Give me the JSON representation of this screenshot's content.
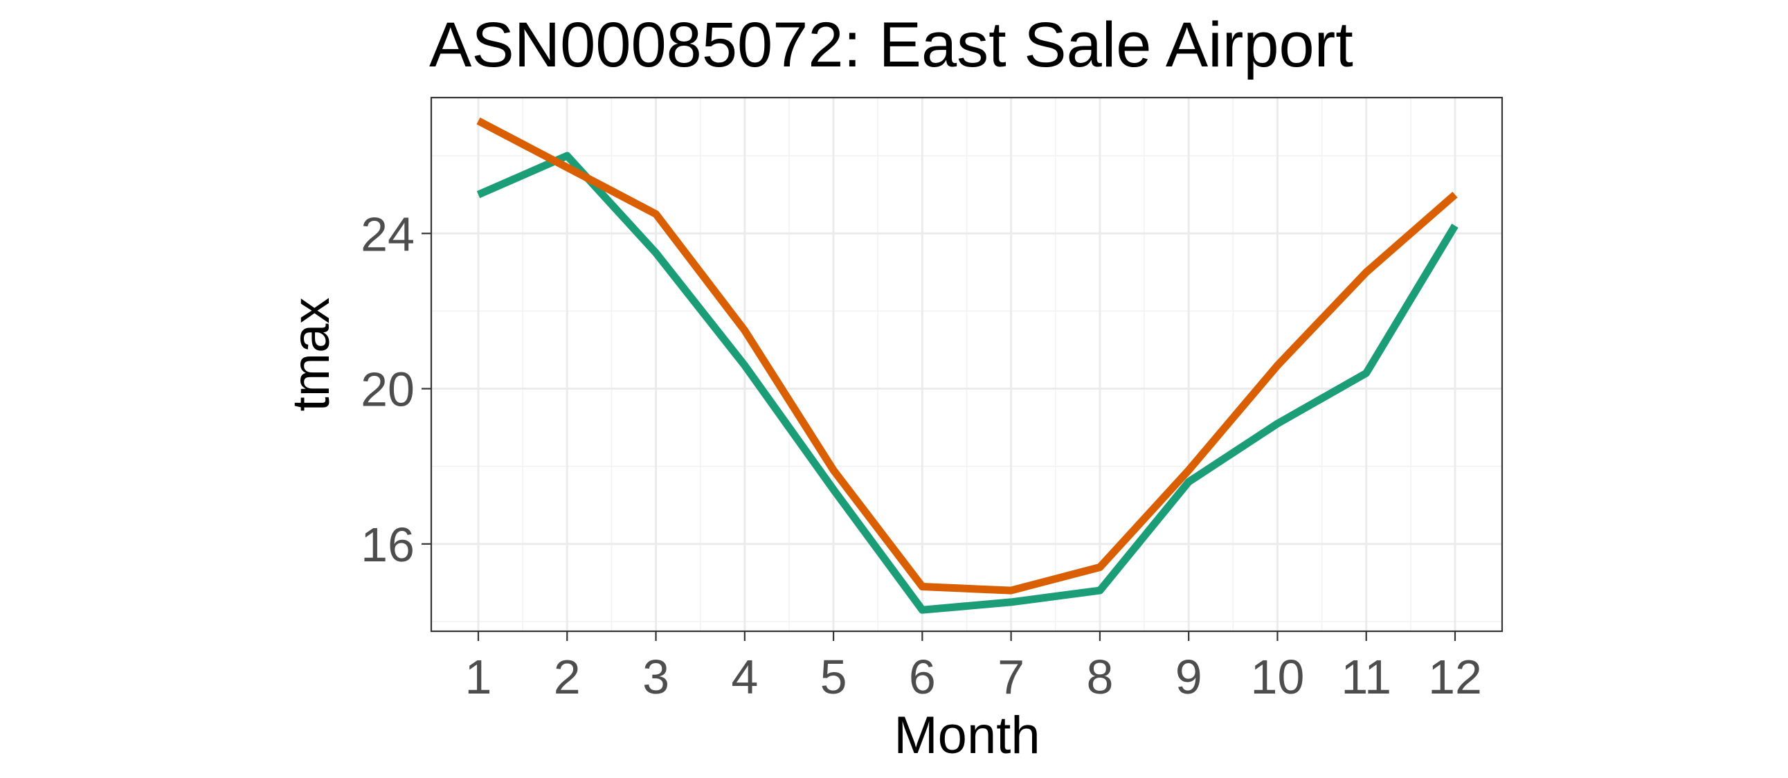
{
  "chart_data": {
    "type": "line",
    "title": "ASN00085072: East Sale Airport",
    "xlabel": "Month",
    "ylabel": "tmax",
    "x": [
      1,
      2,
      3,
      4,
      5,
      6,
      7,
      8,
      9,
      10,
      11,
      12
    ],
    "x_ticks": [
      "1",
      "2",
      "3",
      "4",
      "5",
      "6",
      "7",
      "8",
      "9",
      "10",
      "11",
      "12"
    ],
    "y_ticks": [
      "16",
      "20",
      "24"
    ],
    "y_tick_values": [
      16,
      20,
      24
    ],
    "xlim": [
      0.47,
      12.53
    ],
    "ylim": [
      13.75,
      27.5
    ],
    "grid": true,
    "legend": "none",
    "series": [
      {
        "color": "#1b9e77",
        "values": [
          25.0,
          26.0,
          23.5,
          20.6,
          17.4,
          14.3,
          14.5,
          14.8,
          17.6,
          19.1,
          20.4,
          24.2
        ]
      },
      {
        "color": "#d95f02",
        "values": [
          26.9,
          25.7,
          24.5,
          21.5,
          17.9,
          14.9,
          14.8,
          15.4,
          17.9,
          20.6,
          23.0,
          25.0
        ]
      }
    ]
  }
}
